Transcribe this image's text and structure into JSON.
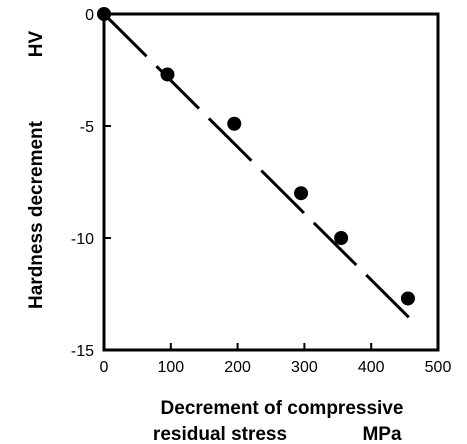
{
  "chart_data": {
    "type": "scatter",
    "title": "",
    "xlabel_line1": "Decrement of compressive",
    "xlabel_line2": "residual stress",
    "xunit": "MPa",
    "ylabel": "Hardness decrement",
    "yunit": "HV",
    "xlim": [
      0,
      500
    ],
    "ylim": [
      -15,
      0
    ],
    "xticks": [
      0,
      100,
      200,
      300,
      400,
      500
    ],
    "yticks": [
      0,
      -5,
      -10,
      -15
    ],
    "grid": false,
    "series": [
      {
        "x": [
          0,
          95,
          195,
          295,
          355,
          455
        ],
        "y": [
          0,
          -2.7,
          -4.9,
          -8.0,
          -10.0,
          -12.7
        ]
      }
    ],
    "fit_line": {
      "x": [
        0,
        465
      ],
      "y": [
        0,
        -13.8
      ],
      "style": "dashed"
    }
  }
}
